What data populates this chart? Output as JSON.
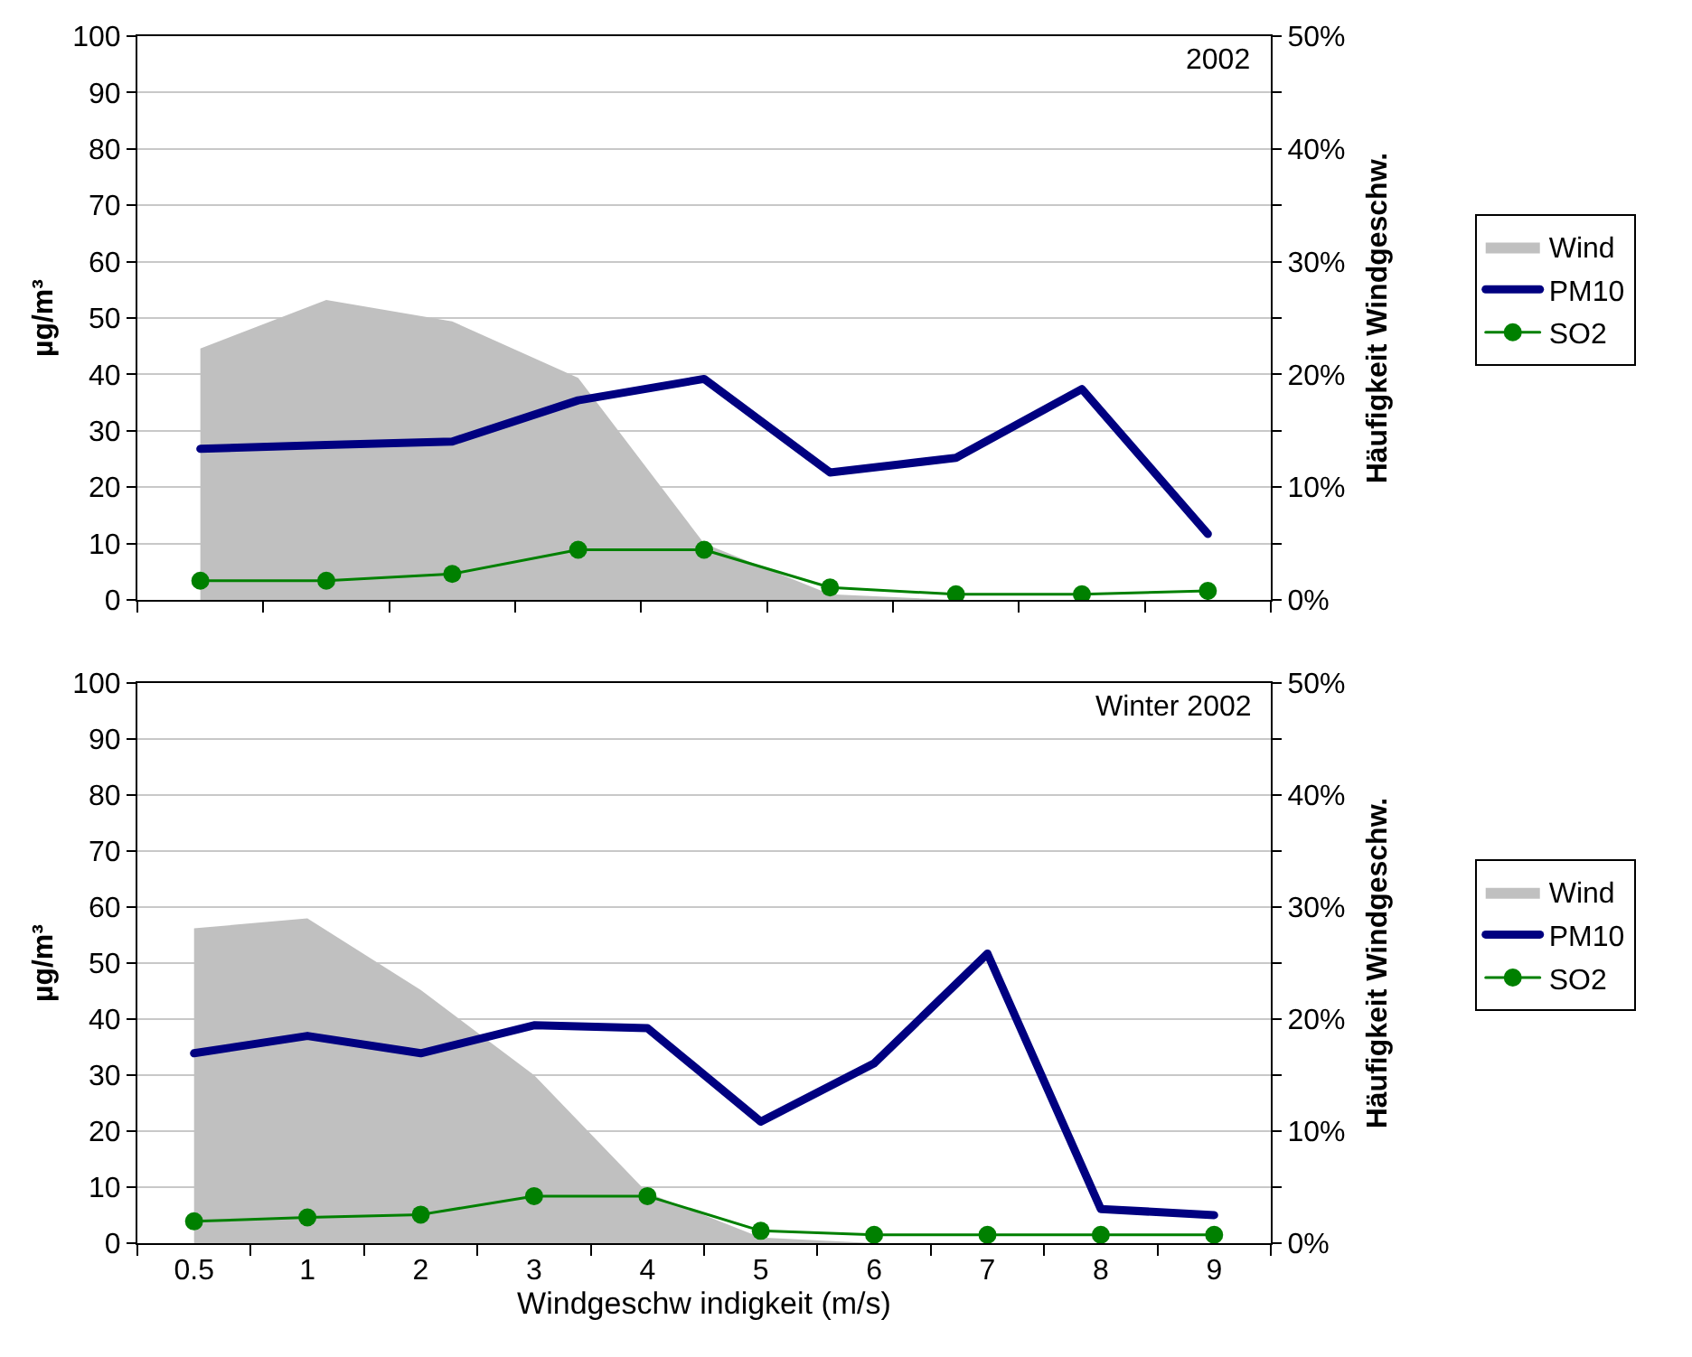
{
  "chart_data": [
    {
      "type": "line",
      "categories": [
        null,
        null,
        null,
        null,
        null,
        null,
        null,
        null,
        null
      ],
      "ylabel": "µg/m³",
      "y2label": "Häufigkeit Windgeschw.",
      "annotations": [
        "2002"
      ],
      "series": [
        {
          "name": "Wind",
          "type": "area",
          "axis": "y2",
          "color": "#c0c0c0",
          "values": [
            22.3,
            26.6,
            24.7,
            19.7,
            5,
            0.5,
            0,
            0,
            0
          ]
        },
        {
          "name": "PM10",
          "color": "#000080",
          "marker": "none",
          "values": [
            26.8,
            27.5,
            28.1,
            35.4,
            39.2,
            22.6,
            25.2,
            37.4,
            11.7
          ]
        },
        {
          "name": "SO2",
          "color": "#008000",
          "marker": "circle",
          "values": [
            3.4,
            3.4,
            4.6,
            8.9,
            8.9,
            2.2,
            1,
            1,
            1.6
          ]
        }
      ],
      "ylim": [
        0,
        100
      ],
      "yticks": [
        0,
        10,
        20,
        30,
        40,
        50,
        60,
        70,
        80,
        90,
        100
      ],
      "y2lim": [
        0,
        50
      ],
      "y2ticks": [
        {
          "value": 0,
          "label": "0%"
        },
        {
          "value": 5,
          "label": null
        },
        {
          "value": 10,
          "label": "10%"
        },
        {
          "value": 15,
          "label": null
        },
        {
          "value": 20,
          "label": "20%"
        },
        {
          "value": 25,
          "label": null
        },
        {
          "value": 30,
          "label": "30%"
        },
        {
          "value": 35,
          "label": null
        },
        {
          "value": 40,
          "label": "40%"
        },
        {
          "value": 45,
          "label": null
        },
        {
          "value": 50,
          "label": "50%"
        }
      ],
      "grid": "y",
      "legend": "right",
      "tick_labels": "y"
    },
    {
      "type": "line",
      "categories": [
        "0.5",
        "1",
        "2",
        "3",
        "4",
        "5",
        "6",
        "7",
        "8",
        "9"
      ],
      "xlabel": "Windgeschw indigkeit (m/s)",
      "ylabel": "µg/m³",
      "y2label": "Häufigkeit Windgeschw.",
      "annotations": [
        "Winter 2002"
      ],
      "series": [
        {
          "name": "Wind",
          "type": "area",
          "axis": "y2",
          "color": "#c0c0c0",
          "values": [
            28.1,
            29,
            22.6,
            15,
            4.5,
            0.5,
            0,
            0,
            0,
            0
          ]
        },
        {
          "name": "PM10",
          "color": "#000080",
          "marker": "none",
          "values": [
            33.9,
            37,
            33.9,
            38.9,
            38.4,
            21.7,
            32.1,
            51.7,
            6.1,
            5
          ]
        },
        {
          "name": "SO2",
          "color": "#008000",
          "marker": "circle",
          "values": [
            3.9,
            4.6,
            5.1,
            8.4,
            8.4,
            2.2,
            1.5,
            1.5,
            1.5,
            1.5
          ]
        }
      ],
      "ylim": [
        0,
        100
      ],
      "yticks": [
        0,
        10,
        20,
        30,
        40,
        50,
        60,
        70,
        80,
        90,
        100
      ],
      "y2lim": [
        0,
        50
      ],
      "y2ticks": [
        {
          "value": 0,
          "label": "0%"
        },
        {
          "value": 5,
          "label": null
        },
        {
          "value": 10,
          "label": "10%"
        },
        {
          "value": 15,
          "label": null
        },
        {
          "value": 20,
          "label": "20%"
        },
        {
          "value": 25,
          "label": null
        },
        {
          "value": 30,
          "label": "30%"
        },
        {
          "value": 35,
          "label": null
        },
        {
          "value": 40,
          "label": "40%"
        },
        {
          "value": 45,
          "label": null
        },
        {
          "value": 50,
          "label": "50%"
        }
      ],
      "grid": "y",
      "legend": "right"
    }
  ]
}
